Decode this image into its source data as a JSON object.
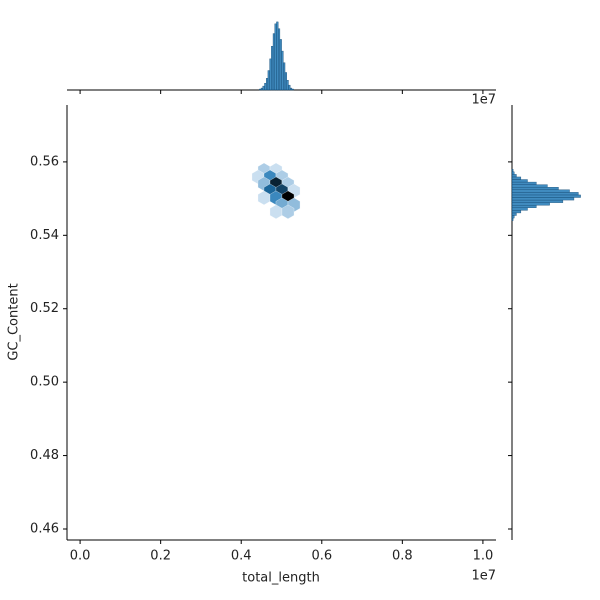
{
  "chart_data": {
    "type": "hexbin",
    "xlabel": "total_length",
    "ylabel": "GC_Content",
    "x_offset_label": "1e7",
    "color": "#1f77b4",
    "xlim": [
      -325000,
      10325000
    ],
    "ylim": [
      0.457,
      0.5755
    ],
    "xticks": [
      {
        "value": 0,
        "label": "0.0"
      },
      {
        "value": 2000000,
        "label": "0.2"
      },
      {
        "value": 4000000,
        "label": "0.4"
      },
      {
        "value": 6000000,
        "label": "0.6"
      },
      {
        "value": 8000000,
        "label": "0.8"
      },
      {
        "value": 10000000,
        "label": "1.0"
      }
    ],
    "yticks": [
      0.46,
      0.48,
      {
        "value": 0.5,
        "label": "0.50"
      },
      0.52,
      0.54,
      0.56
    ],
    "hexbins": {
      "x": [
        4566000,
        4864000,
        4417000,
        4715000,
        5012000,
        4566000,
        4864000,
        5161000,
        4715000,
        5012000,
        5310000,
        4566000,
        4864000,
        5161000,
        5012000,
        5310000,
        4864000,
        5161000
      ],
      "y": [
        0.5578,
        0.5578,
        0.5559,
        0.5559,
        0.5559,
        0.554,
        0.554,
        0.554,
        0.5521,
        0.5521,
        0.5521,
        0.5502,
        0.5502,
        0.5502,
        0.5483,
        0.5483,
        0.5464,
        0.5464
      ],
      "counts": [
        2,
        1,
        1,
        6,
        2,
        3,
        12,
        2,
        8,
        10,
        1,
        1,
        6,
        14,
        4,
        3,
        1,
        2
      ]
    },
    "marginal_x": {
      "bins": [
        4450000,
        4492500,
        4535000,
        4577500,
        4620000,
        4662500,
        4705000,
        4747500,
        4790000,
        4832500,
        4875000,
        4917500,
        4960000,
        5002500,
        5045000,
        5087500,
        5130000,
        5172500,
        5215000,
        5257500,
        5300000
      ],
      "counts": [
        1,
        2,
        4,
        7,
        12,
        20,
        32,
        45,
        58,
        68,
        70,
        63,
        52,
        40,
        28,
        18,
        10,
        5,
        2,
        1
      ],
      "countlim": [
        0,
        74
      ]
    },
    "marginal_y": {
      "bins": [
        0.544,
        0.5447,
        0.5454,
        0.5461,
        0.5468,
        0.5475,
        0.5482,
        0.5489,
        0.5496,
        0.5503,
        0.551,
        0.5517,
        0.5524,
        0.5531,
        0.5538,
        0.5545,
        0.5552,
        0.5559,
        0.5566,
        0.5573,
        0.558
      ],
      "counts": [
        1,
        2,
        4,
        8,
        14,
        22,
        34,
        46,
        56,
        62,
        60,
        52,
        42,
        32,
        22,
        14,
        8,
        4,
        2,
        1
      ],
      "countlim": [
        0,
        66
      ]
    }
  }
}
